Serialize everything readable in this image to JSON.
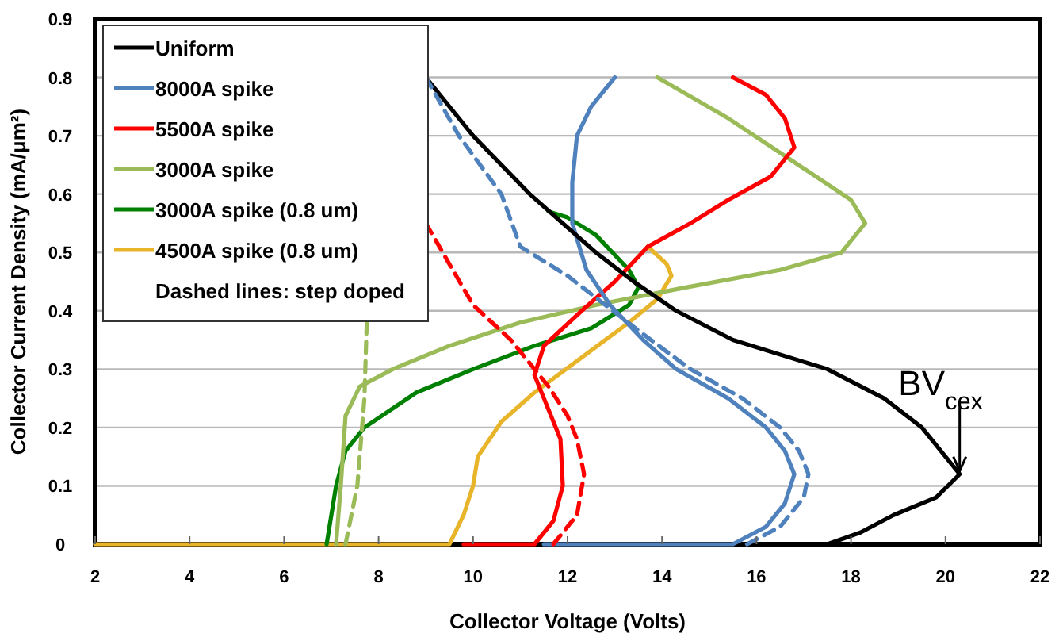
{
  "chart_data": {
    "type": "line",
    "xlabel": "Collector Voltage (Volts)",
    "ylabel": "Collector Current Density (mA/μm²)",
    "xlim": [
      2,
      22
    ],
    "xticks": [
      2,
      4,
      6,
      8,
      10,
      12,
      14,
      16,
      18,
      20,
      22
    ],
    "ylim": [
      0,
      0.9
    ],
    "yticks": [
      0,
      0.1,
      0.2,
      0.3,
      0.4,
      0.5,
      0.6,
      0.7,
      0.8,
      0.9
    ],
    "grid": "y",
    "legend": "top left",
    "line_style": "solid",
    "marker": "none",
    "annotations": [
      "Dashed lines: step doped",
      {
        "text": "BV$_{cex}$",
        "x": 20.3,
        "y": 0.12
      }
    ],
    "series": [
      {
        "name": "Uniform",
        "color": "#000000",
        "x": [
          15.7,
          17.5,
          18.2,
          18.9,
          19.8,
          20.3,
          20.0,
          19.5,
          18.7,
          17.5,
          15.5,
          14.3,
          13.4,
          12.6,
          11.9,
          11.2,
          10.6,
          10.0,
          9.5,
          9.0
        ],
        "values": [
          0,
          0,
          0.02,
          0.05,
          0.08,
          0.12,
          0.15,
          0.2,
          0.25,
          0.3,
          0.35,
          0.4,
          0.45,
          0.5,
          0.55,
          0.6,
          0.65,
          0.7,
          0.75,
          0.8
        ]
      },
      {
        "name": "8000A spike",
        "color": "#4f81bd",
        "x": [
          11.5,
          15.5,
          16.2,
          16.6,
          16.8,
          16.6,
          16.2,
          15.4,
          14.3,
          13.6,
          12.9,
          12.4,
          12.1,
          12.1,
          12.2,
          12.5,
          13.0
        ],
        "values": [
          0,
          0,
          0.03,
          0.07,
          0.12,
          0.16,
          0.2,
          0.25,
          0.3,
          0.35,
          0.41,
          0.47,
          0.55,
          0.62,
          0.7,
          0.75,
          0.8
        ]
      },
      {
        "name": "5500A spike",
        "color": "#ff0000",
        "x": [
          9.8,
          11.3,
          11.7,
          11.9,
          11.85,
          11.5,
          11.3,
          11.5,
          12.3,
          13.0,
          13.7,
          14.6,
          15.4,
          16.3,
          16.8,
          16.6,
          16.2,
          15.5
        ],
        "values": [
          0,
          0,
          0.04,
          0.1,
          0.18,
          0.25,
          0.29,
          0.34,
          0.4,
          0.45,
          0.51,
          0.55,
          0.59,
          0.63,
          0.68,
          0.73,
          0.77,
          0.8
        ]
      },
      {
        "name": "3000A spike",
        "color": "#9bbb59",
        "x": [
          7.1,
          7.2,
          7.3,
          7.6,
          8.3,
          9.5,
          11.0,
          12.6,
          14.5,
          16.5,
          17.8,
          18.3,
          18.0,
          16.7,
          15.4,
          13.9
        ],
        "values": [
          0,
          0.1,
          0.22,
          0.27,
          0.3,
          0.34,
          0.38,
          0.41,
          0.44,
          0.47,
          0.5,
          0.55,
          0.59,
          0.66,
          0.73,
          0.8
        ]
      },
      {
        "name": "3000A spike (0.8 um)",
        "color": "#008000",
        "x": [
          6.9,
          7.1,
          7.3,
          7.7,
          8.8,
          10.0,
          11.3,
          12.5,
          13.3,
          13.5,
          13.3,
          12.6,
          12.0,
          11.6
        ],
        "values": [
          0,
          0.1,
          0.16,
          0.2,
          0.26,
          0.3,
          0.34,
          0.37,
          0.41,
          0.44,
          0.47,
          0.53,
          0.56,
          0.57
        ]
      },
      {
        "name": "4500A spike (0.8 um)",
        "color": "#e8b42a",
        "x": [
          2,
          9.5,
          9.8,
          10.0,
          10.1,
          10.6,
          11.3,
          12.3,
          13.3,
          13.9,
          14.2,
          14.1,
          13.7
        ],
        "values": [
          0,
          0,
          0.05,
          0.1,
          0.15,
          0.21,
          0.26,
          0.32,
          0.38,
          0.42,
          0.46,
          0.48,
          0.51
        ]
      },
      {
        "color": "#4f81bd",
        "line_style": "dashed",
        "x": [
          15.8,
          16.5,
          17.0,
          17.1,
          16.9,
          16.5,
          15.7,
          14.6,
          13.6,
          12.8,
          12.0,
          11.0,
          10.6,
          9.7,
          9.0
        ],
        "values": [
          0,
          0.03,
          0.08,
          0.12,
          0.16,
          0.2,
          0.25,
          0.3,
          0.36,
          0.41,
          0.46,
          0.51,
          0.6,
          0.7,
          0.8
        ]
      },
      {
        "color": "#ff0000",
        "line_style": "dashed",
        "x": [
          11.7,
          12.2,
          12.35,
          12.2,
          12.0,
          11.6,
          11.3,
          10.8,
          10.0,
          9.5,
          9.0
        ],
        "values": [
          0,
          0.05,
          0.12,
          0.18,
          0.22,
          0.27,
          0.3,
          0.35,
          0.41,
          0.48,
          0.55
        ]
      },
      {
        "color": "#9bbb59",
        "line_style": "dashed",
        "x": [
          7.3,
          7.55,
          7.7,
          7.75
        ],
        "values": [
          0,
          0.1,
          0.25,
          0.38
        ]
      }
    ]
  }
}
